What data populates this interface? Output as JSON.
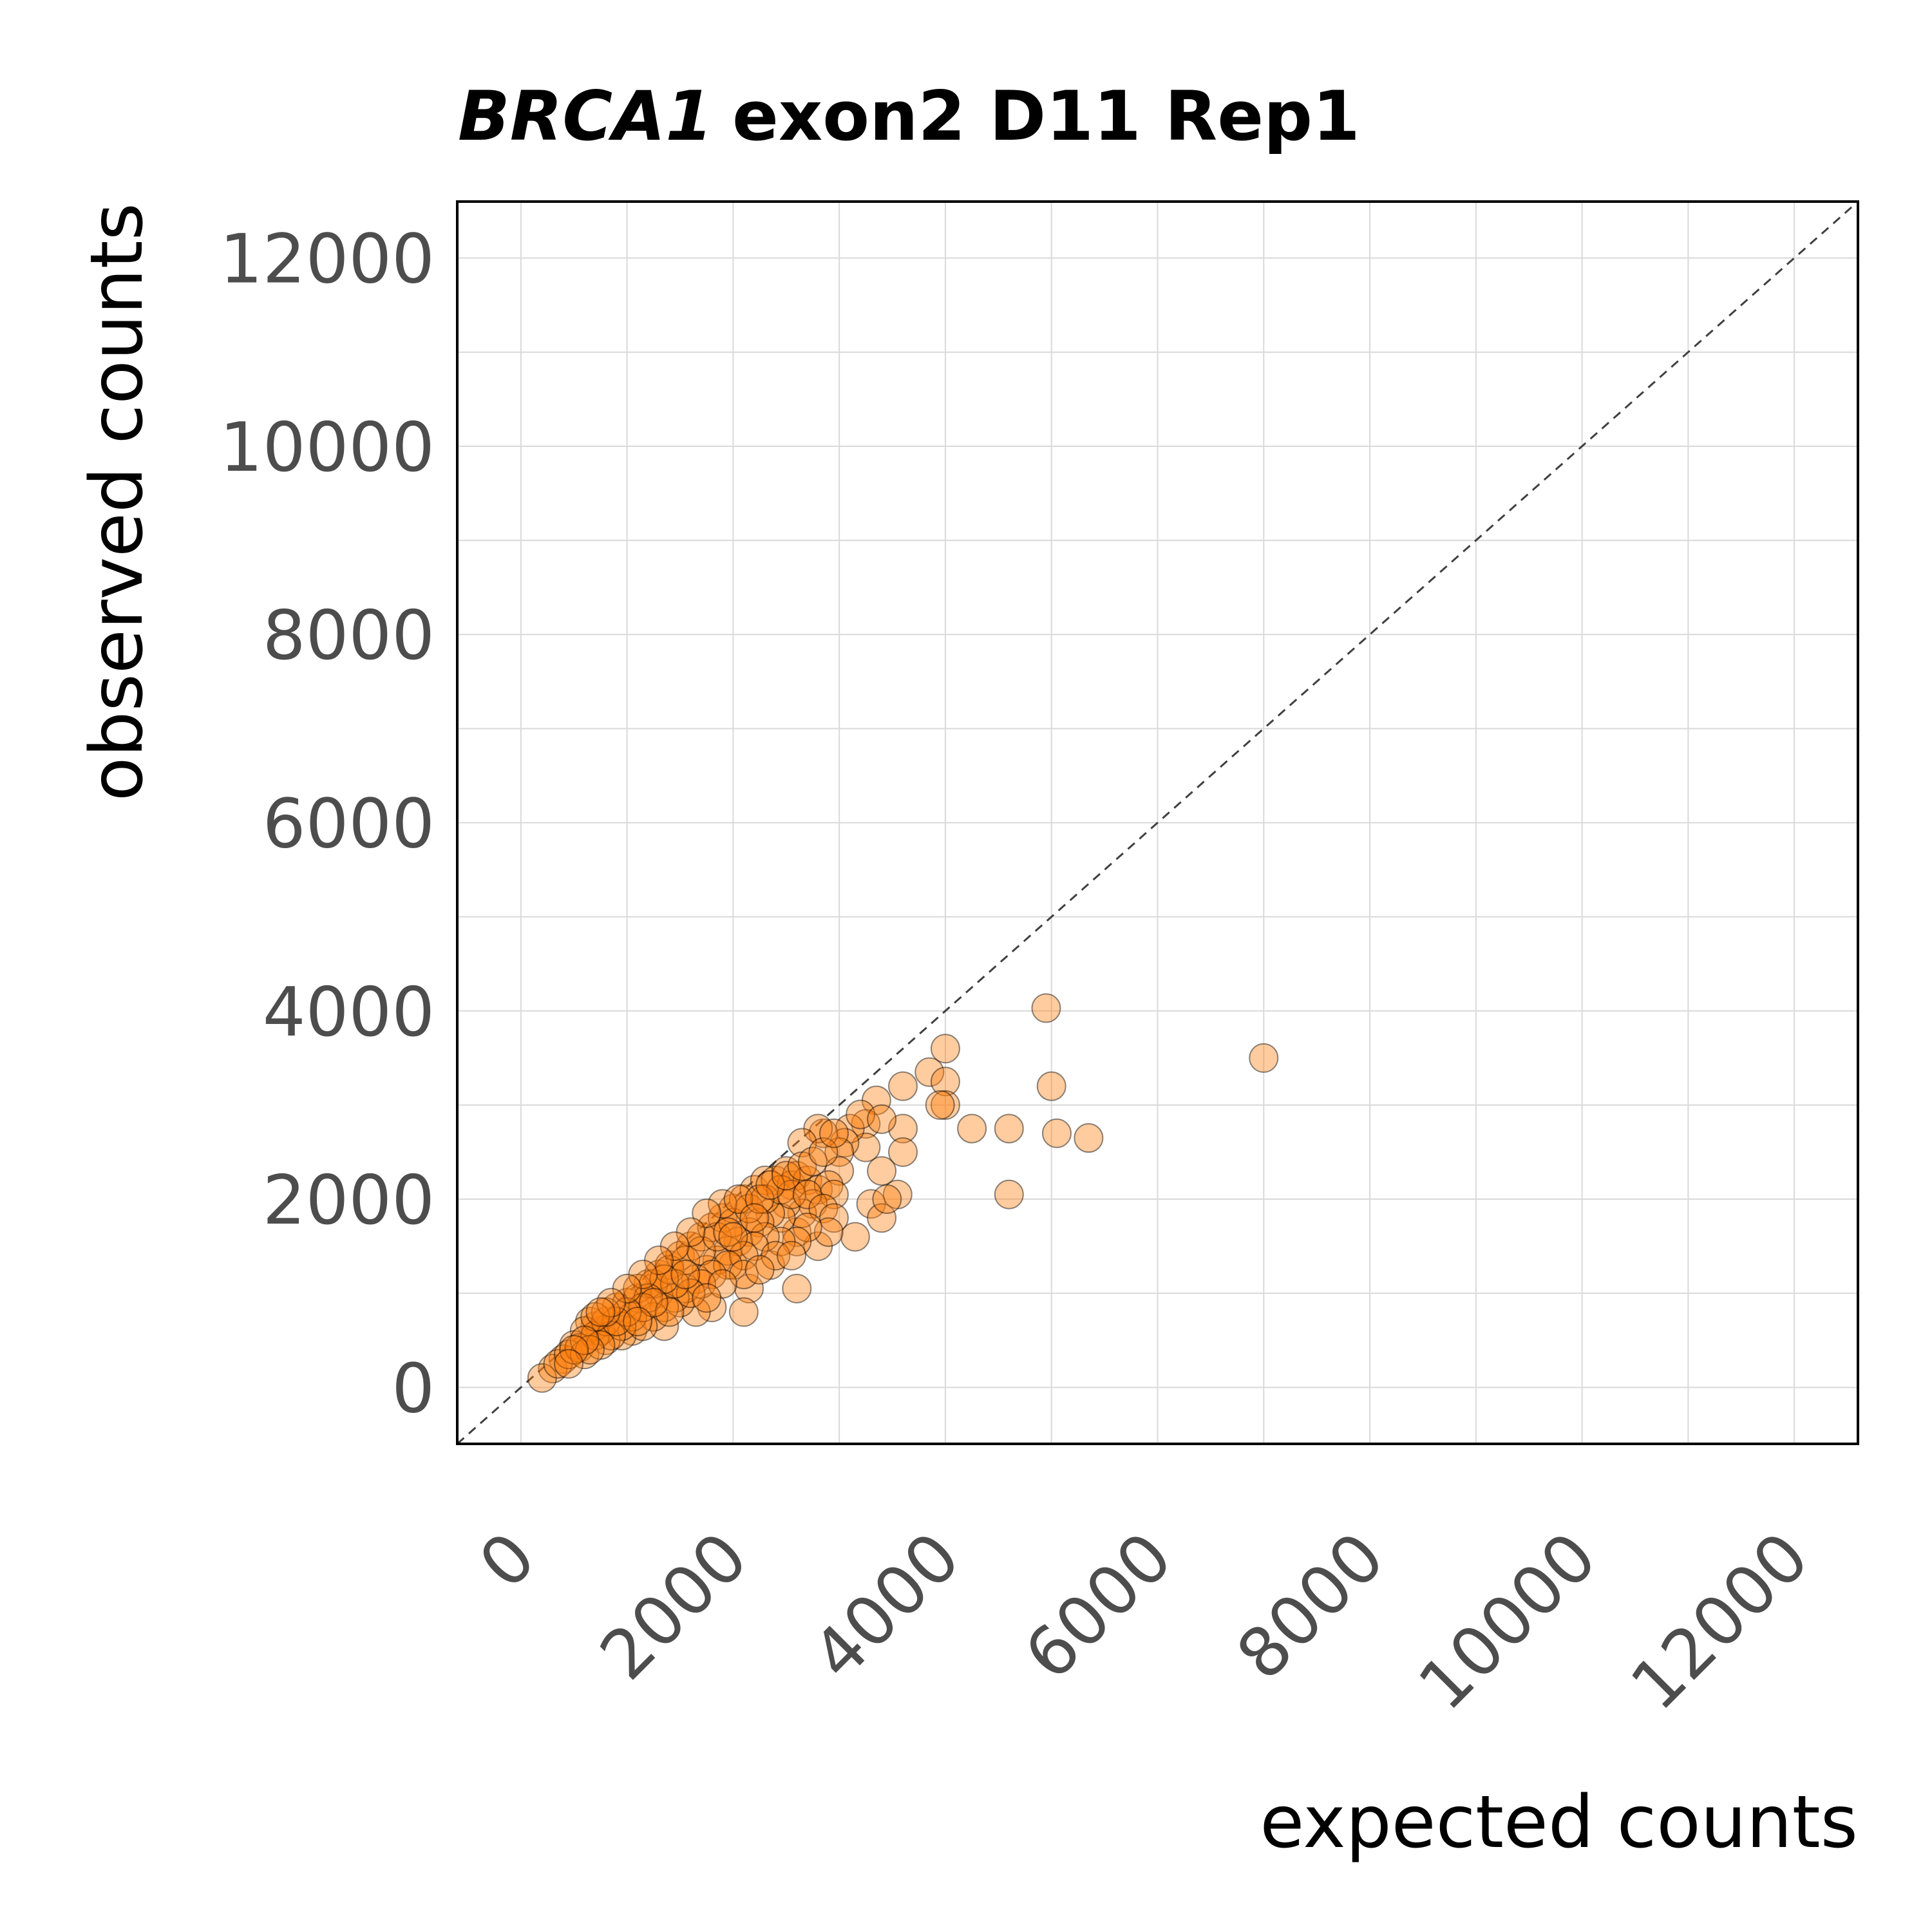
{
  "chart_data": {
    "type": "scatter",
    "title_gene": "BRCA1",
    "title_rest": "exon2 D11 Rep1",
    "xlabel": "expected counts",
    "ylabel": "observed counts",
    "xlim": [
      -600,
      12600
    ],
    "ylim": [
      -600,
      12600
    ],
    "x_ticks": [
      "0",
      "2000",
      "4000",
      "6000",
      "8000",
      "10000",
      "12000"
    ],
    "y_ticks": [
      "0",
      "2000",
      "4000",
      "6000",
      "8000",
      "10000",
      "12000"
    ],
    "x_tick_values": [
      0,
      2000,
      4000,
      6000,
      8000,
      10000,
      12000
    ],
    "y_tick_values": [
      0,
      2000,
      4000,
      6000,
      8000,
      10000,
      12000
    ],
    "grid": true,
    "reference_line": "y = x (dashed)",
    "colors": {
      "point_fill": "#ff7f0e",
      "point_edge": "#000000",
      "grid": "#d9d9d9",
      "diagonal": "#404040"
    },
    "series": [
      {
        "points": [
          [
            7000,
            3500
          ],
          [
            4950,
            4030
          ],
          [
            4000,
            3600
          ],
          [
            3850,
            3350
          ],
          [
            4000,
            3250
          ],
          [
            4000,
            3000
          ],
          [
            3950,
            3000
          ],
          [
            5000,
            3200
          ],
          [
            4250,
            2750
          ],
          [
            4600,
            2750
          ],
          [
            5050,
            2700
          ],
          [
            5350,
            2650
          ],
          [
            4600,
            2050
          ],
          [
            3600,
            3200
          ],
          [
            3350,
            3050
          ],
          [
            3600,
            2750
          ],
          [
            3600,
            2500
          ],
          [
            3550,
            2050
          ],
          [
            3400,
            2300
          ],
          [
            3250,
            2800
          ],
          [
            3250,
            2550
          ],
          [
            3100,
            2750
          ],
          [
            3050,
            2600
          ],
          [
            3000,
            2500
          ],
          [
            3200,
            2900
          ],
          [
            3400,
            2850
          ],
          [
            2850,
            2700
          ],
          [
            2800,
            2750
          ],
          [
            2650,
            2600
          ],
          [
            3000,
            2300
          ],
          [
            3300,
            1950
          ],
          [
            3400,
            1800
          ],
          [
            3450,
            2000
          ],
          [
            3150,
            1600
          ],
          [
            2800,
            1500
          ],
          [
            2600,
            1650
          ],
          [
            2600,
            1050
          ],
          [
            2350,
            1300
          ],
          [
            2150,
            1050
          ],
          [
            2100,
            800
          ],
          [
            1800,
            850
          ],
          [
            2000,
            1300
          ],
          [
            1650,
            800
          ],
          [
            1500,
            900
          ],
          [
            1300,
            1000
          ],
          [
            1350,
            650
          ],
          [
            1050,
            600
          ],
          [
            950,
            550
          ],
          [
            800,
            500
          ],
          [
            750,
            600
          ],
          [
            700,
            650
          ],
          [
            650,
            700
          ],
          [
            600,
            600
          ],
          [
            500,
            450
          ],
          [
            400,
            300
          ],
          [
            300,
            200
          ],
          [
            200,
            100
          ],
          [
            350,
            250
          ],
          [
            450,
            350
          ],
          [
            550,
            420
          ],
          [
            600,
            350
          ],
          [
            700,
            550
          ],
          [
            800,
            700
          ],
          [
            900,
            850
          ],
          [
            1000,
            900
          ],
          [
            1100,
            950
          ],
          [
            1200,
            1100
          ],
          [
            1300,
            1200
          ],
          [
            1400,
            1300
          ],
          [
            1500,
            1400
          ],
          [
            1600,
            1500
          ],
          [
            1700,
            1600
          ],
          [
            1800,
            1700
          ],
          [
            1900,
            1800
          ],
          [
            2000,
            1900
          ],
          [
            2100,
            2000
          ],
          [
            2200,
            2100
          ],
          [
            2300,
            2200
          ],
          [
            2400,
            2200
          ],
          [
            2500,
            2300
          ],
          [
            2550,
            2150
          ],
          [
            2600,
            2250
          ],
          [
            2700,
            2200
          ],
          [
            2800,
            2100
          ],
          [
            2900,
            2150
          ],
          [
            2950,
            2050
          ],
          [
            2750,
            1950
          ],
          [
            2650,
            1850
          ],
          [
            2500,
            1950
          ],
          [
            2450,
            1800
          ],
          [
            2350,
            1850
          ],
          [
            2250,
            1750
          ],
          [
            2150,
            1650
          ],
          [
            2050,
            1550
          ],
          [
            1950,
            1450
          ],
          [
            1850,
            1350
          ],
          [
            1750,
            1250
          ],
          [
            1650,
            1150
          ],
          [
            1550,
            1050
          ],
          [
            1450,
            950
          ],
          [
            1350,
            850
          ],
          [
            1250,
            750
          ],
          [
            1150,
            650
          ],
          [
            1050,
            750
          ],
          [
            950,
            650
          ],
          [
            850,
            550
          ],
          [
            750,
            450
          ],
          [
            650,
            400
          ],
          [
            1100,
            1050
          ],
          [
            1250,
            1100
          ],
          [
            1400,
            1250
          ],
          [
            1550,
            1350
          ],
          [
            1700,
            1450
          ],
          [
            1850,
            1600
          ],
          [
            2000,
            1750
          ],
          [
            2150,
            1900
          ],
          [
            2300,
            2000
          ],
          [
            2450,
            2100
          ],
          [
            2550,
            2050
          ],
          [
            2700,
            2050
          ],
          [
            2850,
            1900
          ],
          [
            2950,
            1800
          ],
          [
            2900,
            1650
          ],
          [
            2700,
            1700
          ],
          [
            2600,
            1550
          ],
          [
            2450,
            1550
          ],
          [
            2300,
            1600
          ],
          [
            2200,
            1500
          ],
          [
            2100,
            1400
          ],
          [
            1950,
            1300
          ],
          [
            1800,
            1200
          ],
          [
            1700,
            1100
          ],
          [
            1600,
            1000
          ],
          [
            1450,
            1100
          ],
          [
            1350,
            1150
          ],
          [
            1200,
            950
          ],
          [
            1150,
            850
          ],
          [
            1000,
            800
          ],
          [
            900,
            700
          ],
          [
            800,
            800
          ],
          [
            700,
            750
          ],
          [
            600,
            500
          ],
          [
            500,
            400
          ],
          [
            450,
            250
          ],
          [
            1900,
            1950
          ],
          [
            2050,
            2000
          ],
          [
            2250,
            2000
          ],
          [
            2350,
            2150
          ],
          [
            2500,
            2250
          ],
          [
            2650,
            2350
          ],
          [
            2750,
            2400
          ],
          [
            2850,
            2500
          ],
          [
            2950,
            2700
          ],
          [
            1750,
            1850
          ],
          [
            1600,
            1650
          ],
          [
            1450,
            1500
          ],
          [
            1300,
            1350
          ],
          [
            1150,
            1200
          ],
          [
            1000,
            1050
          ],
          [
            850,
            900
          ],
          [
            750,
            800
          ],
          [
            1950,
            1650
          ],
          [
            2100,
            1200
          ],
          [
            2400,
            1400
          ],
          [
            2550,
            1400
          ],
          [
            2250,
            1250
          ],
          [
            1900,
            1100
          ],
          [
            1750,
            950
          ],
          [
            1550,
            1200
          ],
          [
            1400,
            800
          ],
          [
            1250,
            900
          ],
          [
            1100,
            700
          ],
          [
            2000,
            1600
          ],
          [
            2200,
            1800
          ]
        ]
      }
    ]
  }
}
